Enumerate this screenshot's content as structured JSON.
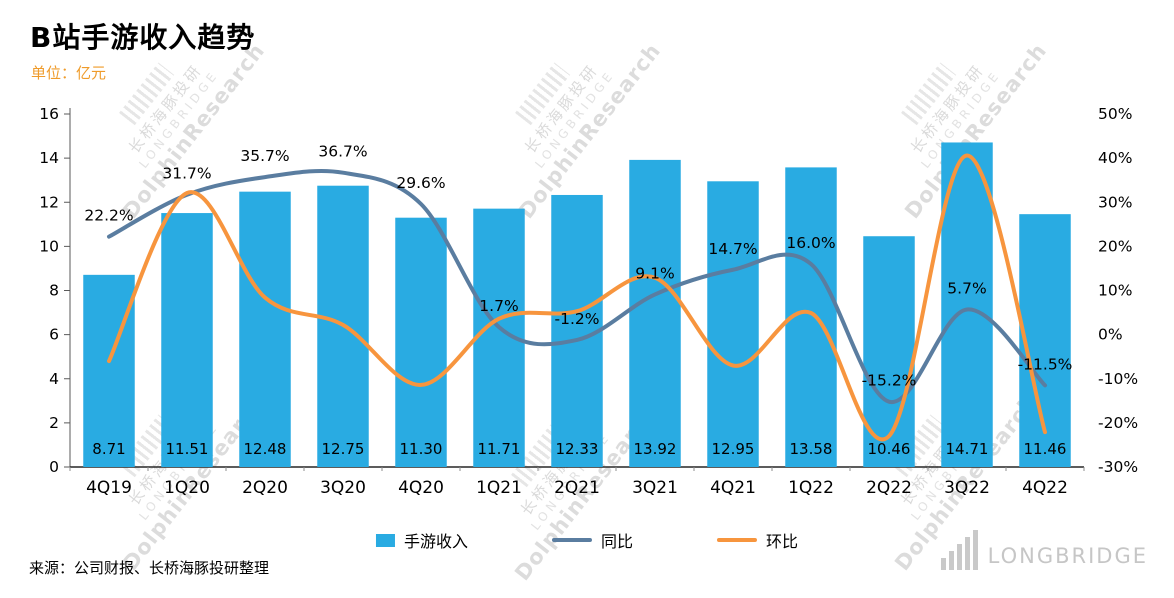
{
  "chart_data": {
    "type": "combo",
    "title": "B站手游收入趋势",
    "unit": "单位：亿元",
    "categories": [
      "4Q19",
      "1Q20",
      "2Q20",
      "3Q20",
      "4Q20",
      "1Q21",
      "2Q21",
      "3Q21",
      "4Q21",
      "1Q22",
      "2Q22",
      "3Q22",
      "4Q22"
    ],
    "series": [
      {
        "name": "手游收入",
        "type": "bar",
        "axis": "left",
        "color": "#29abe2",
        "values": [
          8.71,
          11.51,
          12.48,
          12.75,
          11.3,
          11.71,
          12.33,
          13.92,
          12.95,
          13.58,
          10.46,
          14.71,
          11.46
        ]
      },
      {
        "name": "同比",
        "type": "line",
        "axis": "right",
        "color": "#5a7da0",
        "values": [
          22.2,
          31.7,
          35.7,
          36.7,
          29.6,
          1.7,
          -1.2,
          9.1,
          14.7,
          16.0,
          -15.2,
          5.7,
          -11.5
        ],
        "labels": [
          "22.2%",
          "31.7%",
          "35.7%",
          "36.7%",
          "29.6%",
          "1.7%",
          "-1.2%",
          "9.1%",
          "14.7%",
          "16.0%",
          "-15.2%",
          "5.7%",
          "-11.5%"
        ]
      },
      {
        "name": "环比",
        "type": "line",
        "axis": "right",
        "color": "#f7953e",
        "values": [
          -6.0,
          32.1,
          8.4,
          2.2,
          -11.4,
          3.6,
          5.3,
          12.9,
          -7.0,
          4.9,
          -23.0,
          40.6,
          -22.1
        ],
        "labels": []
      }
    ],
    "left_axis": {
      "min": 0,
      "max": 16,
      "step": 2,
      "ticks": [
        "0",
        "2",
        "4",
        "6",
        "8",
        "10",
        "12",
        "14",
        "16"
      ]
    },
    "right_axis": {
      "min": -30,
      "max": 50,
      "step": 10,
      "ticks": [
        "50%",
        "40%",
        "30%",
        "20%",
        "10%",
        "0%",
        "-10%",
        "-20%",
        "-30%"
      ]
    },
    "legend_position": "bottom",
    "grid": false
  },
  "source": "来源：公司财报、长桥海豚投研整理",
  "watermark": {
    "cn": "长桥海豚投研",
    "en1": "LONGBRIDGE",
    "en2": "DolphinResearch"
  },
  "logo": {
    "text": "LONGBRIDGE"
  }
}
